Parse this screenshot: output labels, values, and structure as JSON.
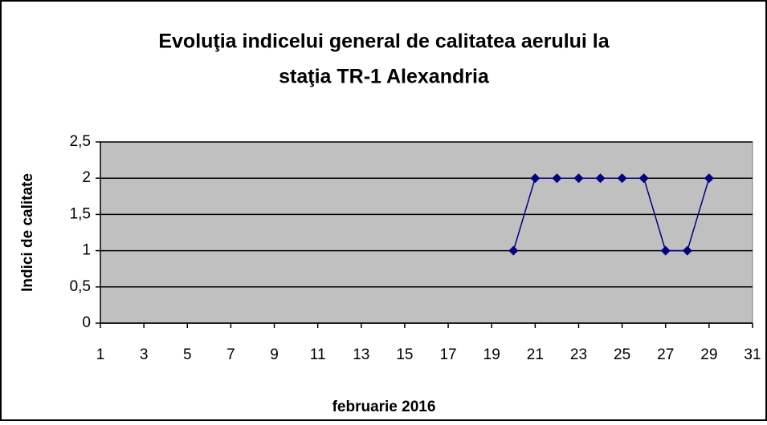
{
  "chart_data": {
    "type": "line",
    "title": [
      "Evoluţia indicelui general de calitatea aerului la",
      "staţia TR-1 Alexandria"
    ],
    "xlabel": "februarie 2016",
    "ylabel": "Indici de calitate",
    "x": [
      20,
      21,
      22,
      23,
      24,
      25,
      26,
      27,
      28,
      29
    ],
    "series": [
      {
        "name": "Indici de calitate",
        "color": "#000080",
        "values": [
          1,
          2,
          2,
          2,
          2,
          2,
          2,
          1,
          1,
          2
        ]
      }
    ],
    "xlim": [
      1,
      31
    ],
    "xticks": [
      1,
      3,
      5,
      7,
      9,
      11,
      13,
      15,
      17,
      19,
      21,
      23,
      25,
      27,
      29,
      31
    ],
    "ylim": [
      0,
      2.5
    ],
    "yticks": [
      0,
      {
        "value": 0.5,
        "label": "0,5"
      },
      1,
      {
        "value": 1.5,
        "label": "1,5"
      },
      2,
      {
        "value": 2.5,
        "label": "2,5"
      }
    ],
    "grid": true,
    "plot_background": "#c0c0c0"
  }
}
